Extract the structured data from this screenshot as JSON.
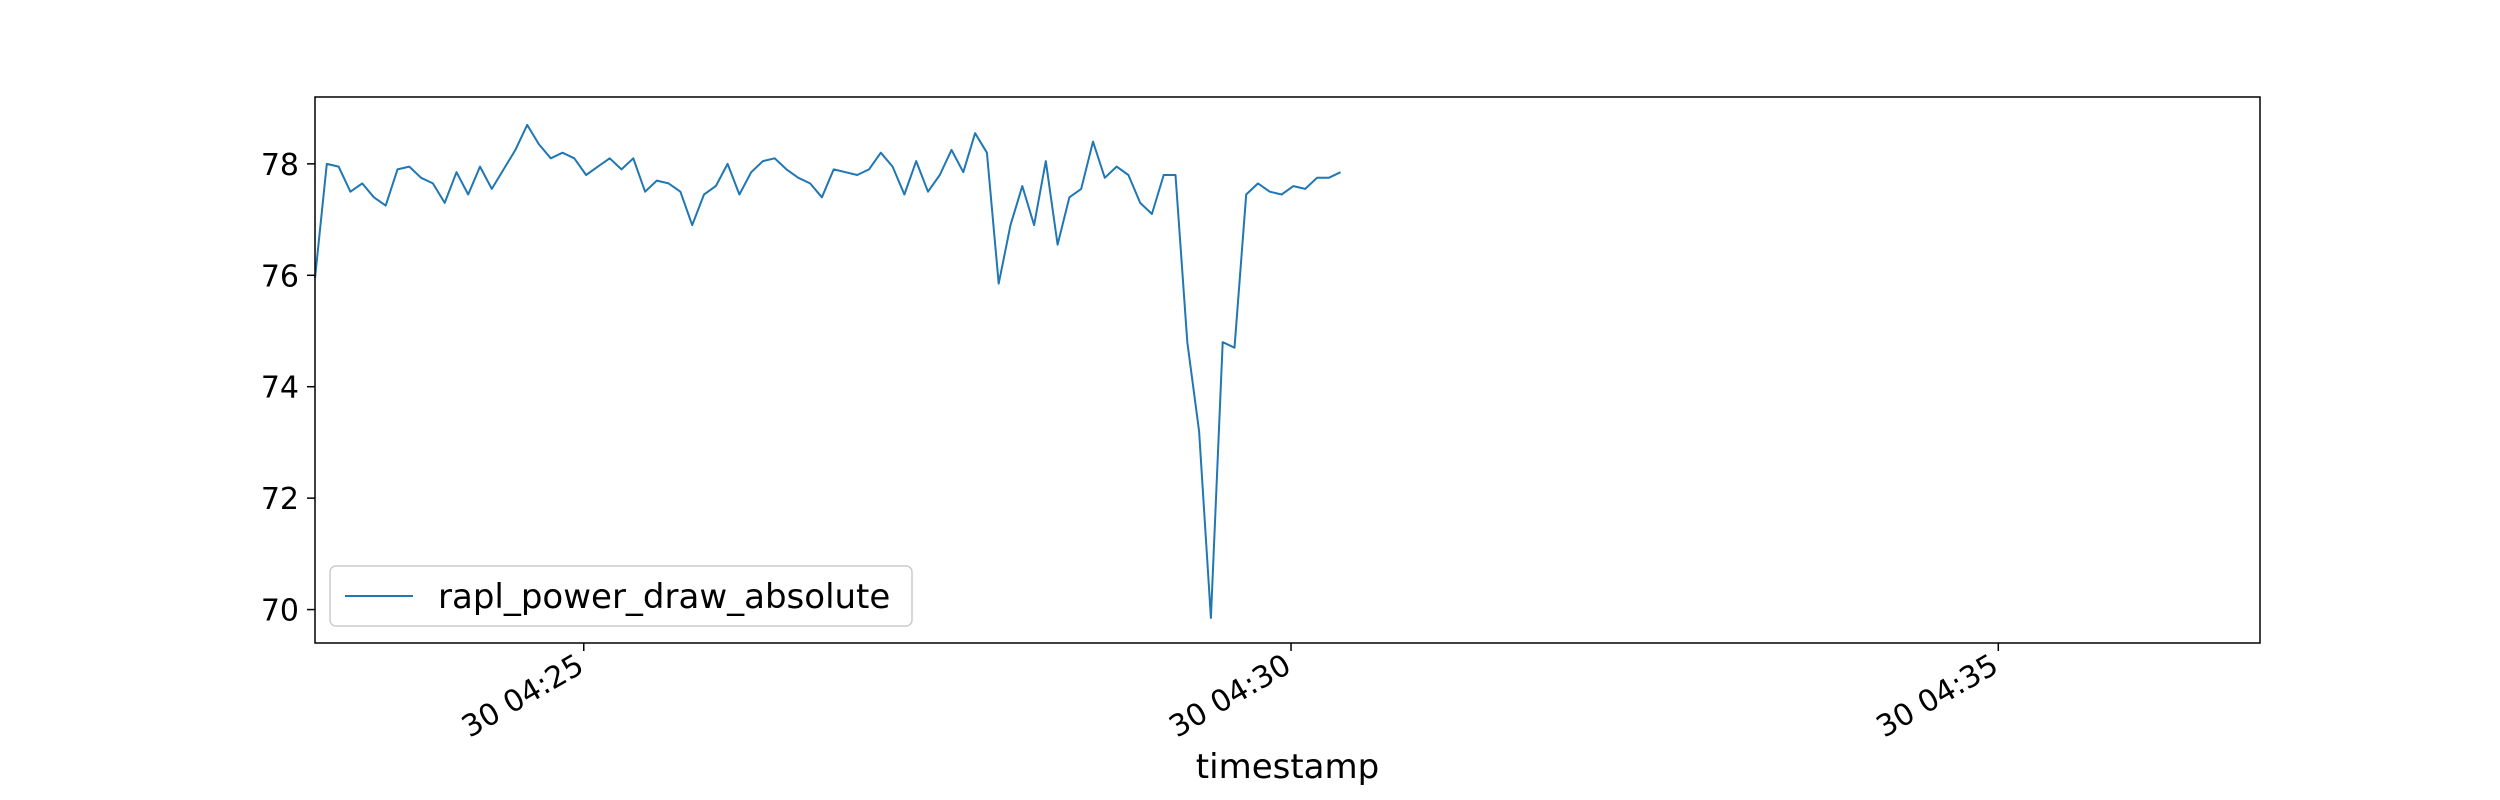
{
  "chart_data": {
    "type": "line",
    "title": "",
    "xlabel": "timestamp",
    "ylabel": "",
    "legend_position": "lower-left",
    "grid": false,
    "sample_interval_seconds": 5,
    "xlim": [
      "04:23:06",
      "04:36:51"
    ],
    "ylim": [
      69.4,
      79.2
    ],
    "x_ticks": [
      {
        "time": "04:25:00",
        "label": "30 04:25"
      },
      {
        "time": "04:30:00",
        "label": "30 04:30"
      },
      {
        "time": "04:35:00",
        "label": "30 04:35"
      }
    ],
    "y_ticks": [
      70,
      72,
      74,
      76,
      78
    ],
    "series": [
      {
        "name": "rapl_power_draw_absolute",
        "color": "#1f77b4",
        "start_time": "04:23:06",
        "values": [
          75.95,
          78.0,
          77.95,
          77.5,
          77.65,
          77.4,
          77.25,
          77.9,
          77.95,
          77.75,
          77.65,
          77.3,
          77.85,
          77.45,
          77.95,
          77.55,
          77.9,
          78.25,
          78.7,
          78.35,
          78.1,
          78.2,
          78.1,
          77.8,
          77.95,
          78.1,
          77.9,
          78.1,
          77.5,
          77.7,
          77.65,
          77.5,
          76.9,
          77.45,
          77.6,
          78.0,
          77.45,
          77.85,
          78.05,
          78.1,
          77.9,
          77.75,
          77.65,
          77.4,
          77.9,
          77.85,
          77.8,
          77.9,
          78.2,
          77.95,
          77.45,
          78.05,
          77.5,
          77.8,
          78.25,
          77.85,
          78.55,
          78.2,
          75.85,
          76.9,
          77.6,
          76.9,
          78.05,
          76.55,
          77.4,
          77.55,
          78.4,
          77.75,
          77.95,
          77.8,
          77.3,
          77.1,
          77.8,
          77.8,
          74.8,
          73.2,
          69.85,
          74.8,
          74.7,
          77.45,
          77.65,
          77.5,
          77.45,
          77.6,
          77.55,
          77.75,
          77.75,
          77.85
        ]
      }
    ]
  }
}
